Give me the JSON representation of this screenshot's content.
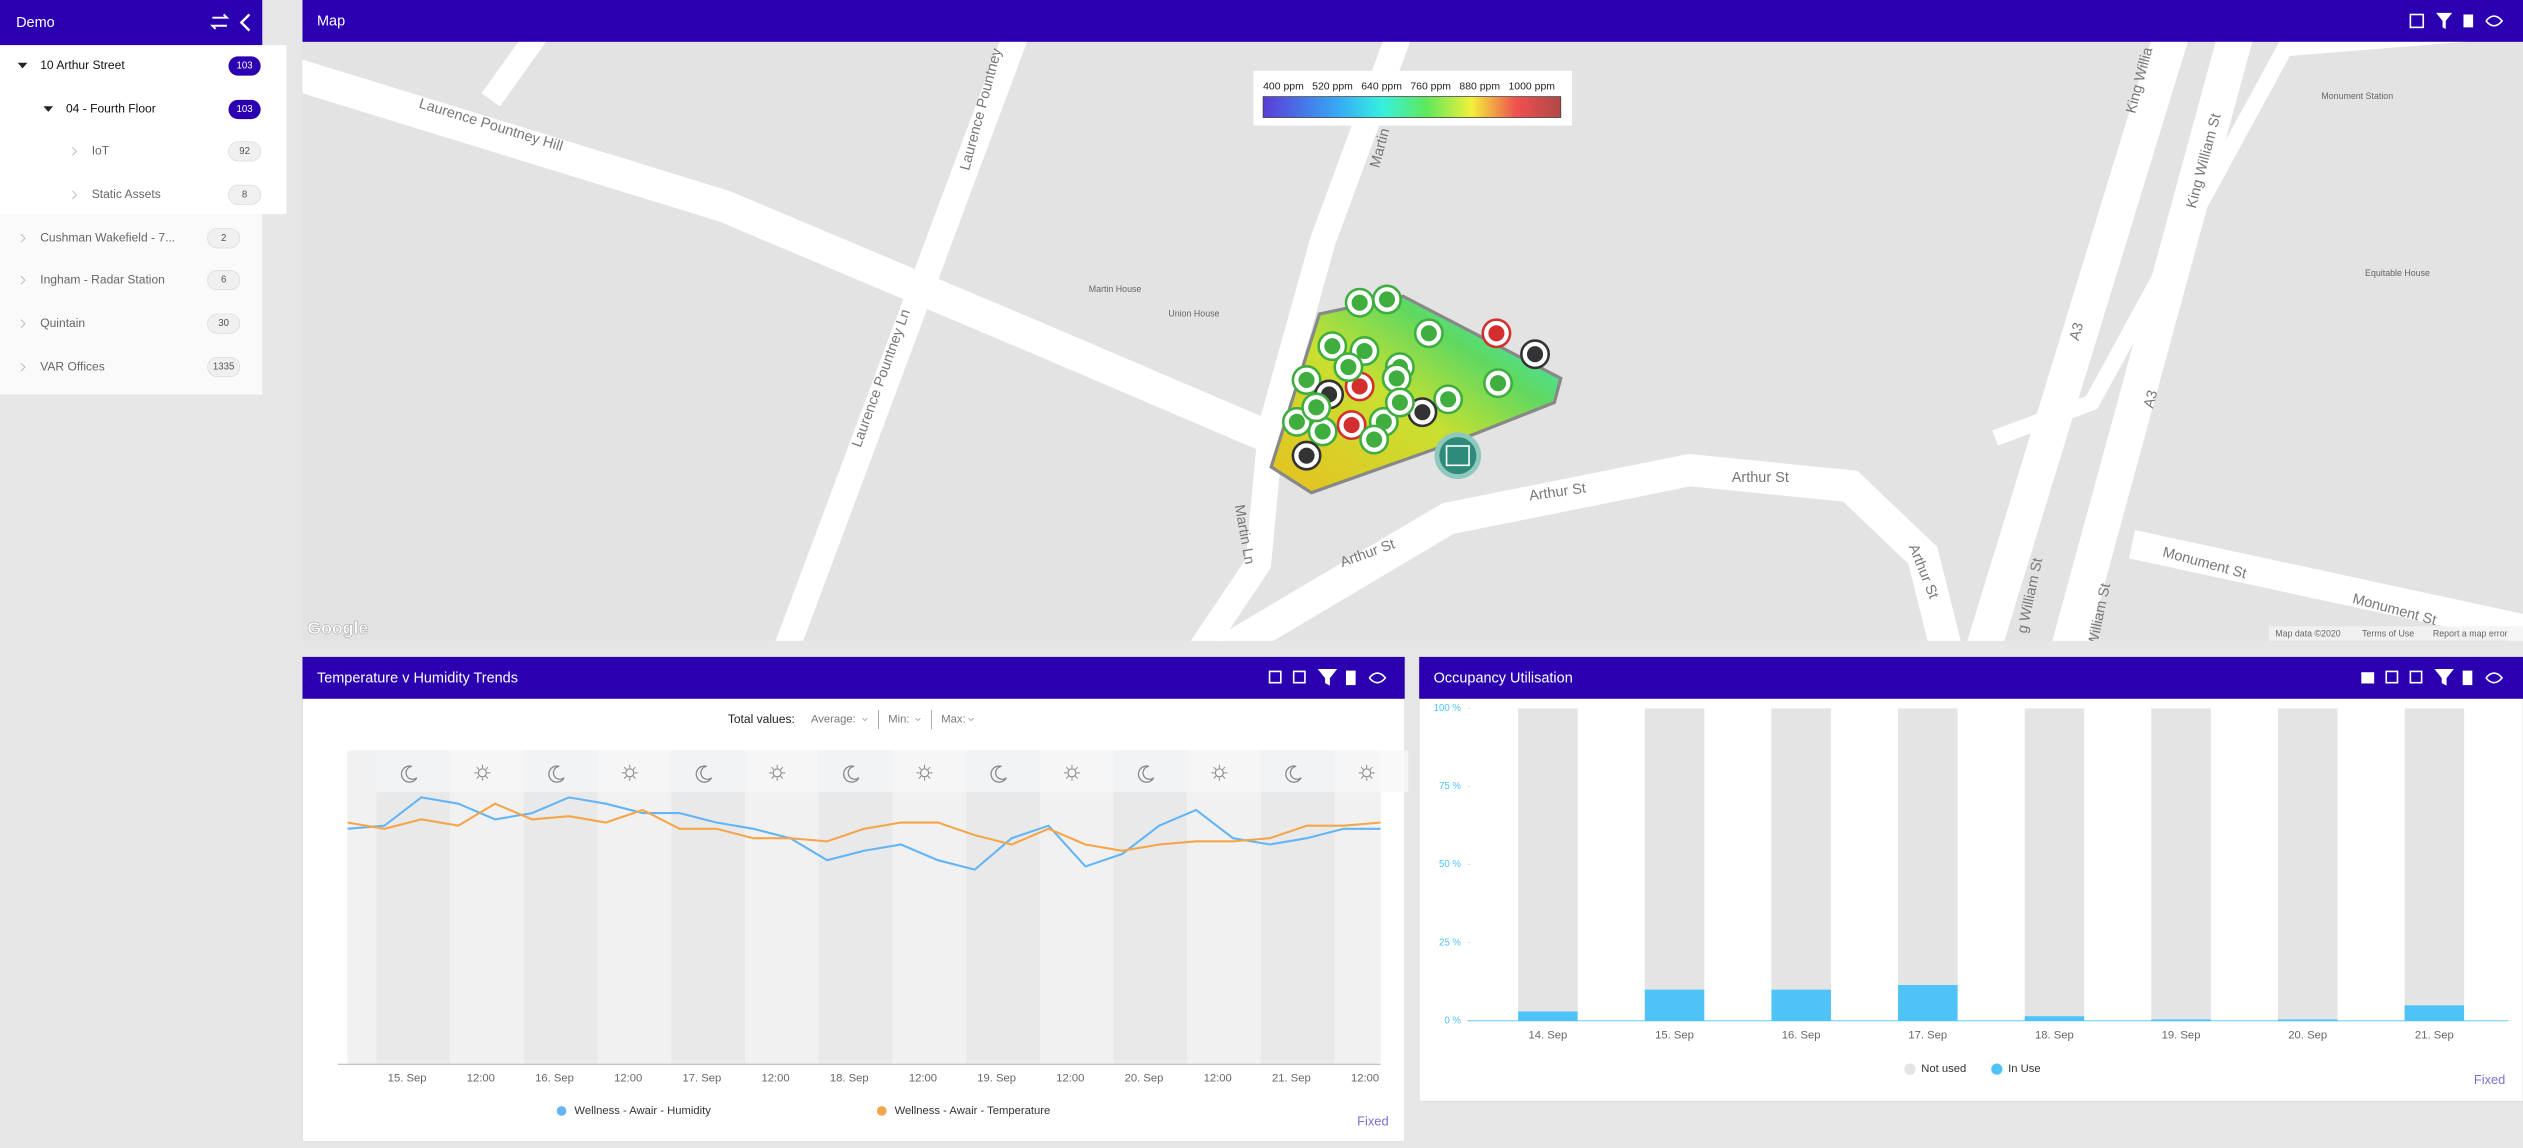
{
  "sidebar": {
    "title": "Demo",
    "items": [
      {
        "label": "10 Arthur Street",
        "count": 103
      },
      {
        "label": "04 - Fourth Floor",
        "count": 103
      },
      {
        "label": "IoT",
        "count": 92
      },
      {
        "label": "Static Assets",
        "count": 8
      },
      {
        "label": "Cushman Wakefield - 7...",
        "count": 2
      },
      {
        "label": "Ingham - Radar Station",
        "count": 6
      },
      {
        "label": "Quintain",
        "count": 30
      },
      {
        "label": "VAR Offices",
        "count": 1335
      }
    ]
  },
  "map": {
    "title": "Map",
    "legend": [
      "400 ppm",
      "520 ppm",
      "640 ppm",
      "760 ppm",
      "880 ppm",
      "1000 ppm"
    ],
    "labels": [
      "Laurence Pountney Hill",
      "Laurence Pountney Ln",
      "Laurence Pountney",
      "Martin",
      "Martin Ln",
      "Arthur St",
      "Arthur St",
      "Arthur St",
      "Arthur St",
      "A3",
      "A3",
      "King William St",
      "King Willia",
      "g William St",
      "William St",
      "Monument St",
      "Monument St",
      "Martin House",
      "Union House",
      "Monument Station",
      "Equitable House"
    ],
    "attribution": [
      "Google",
      "Map data ©2020",
      "Terms of Use",
      "Report a map error"
    ]
  },
  "chart_data": [
    {
      "type": "line",
      "title": "Temperature v Humidity Trends",
      "toolbar": [
        "Total values:",
        "Average:",
        "Min:",
        "Max:"
      ],
      "x_axis_labels": [
        "15. Sep",
        "12:00",
        "16. Sep",
        "12:00",
        "17. Sep",
        "12:00",
        "18. Sep",
        "12:00",
        "19. Sep",
        "12:00",
        "20. Sep",
        "12:00",
        "21. Sep",
        "12:00"
      ],
      "ylim": [
        0,
        100
      ],
      "series": [
        {
          "name": "Wellness - Awair - Humidity",
          "color": "#64b5f6",
          "values": [
            75,
            76,
            85,
            83,
            78,
            80,
            85,
            83,
            80,
            80,
            77,
            75,
            72,
            65,
            68,
            70,
            65,
            62,
            72,
            76,
            63,
            67,
            76,
            81,
            72,
            70,
            72,
            75,
            75
          ]
        },
        {
          "name": "Wellness - Awair - Temperature",
          "color": "#f5a54a",
          "values": [
            77,
            75,
            78,
            76,
            83,
            78,
            79,
            77,
            81,
            75,
            75,
            72,
            72,
            71,
            75,
            77,
            77,
            73,
            70,
            75,
            70,
            68,
            70,
            71,
            71,
            72,
            76,
            76,
            77
          ]
        }
      ],
      "note": "Fixed"
    },
    {
      "type": "bar",
      "stacked": true,
      "title": "Occupancy Utilisation",
      "categories": [
        "14. Sep",
        "15. Sep",
        "16. Sep",
        "17. Sep",
        "18. Sep",
        "19. Sep",
        "20. Sep",
        "21. Sep"
      ],
      "ylim": [
        0,
        100
      ],
      "yticks": [
        {
          "value": 100,
          "label": "100 %"
        },
        {
          "value": 75,
          "label": "75 %"
        },
        {
          "value": 50,
          "label": "50 %"
        },
        {
          "value": 25,
          "label": "25 %"
        },
        {
          "value": 0,
          "label": "0 %"
        }
      ],
      "series": [
        {
          "name": "Not used",
          "color": "#e4e4e4",
          "values": [
            97,
            90,
            90,
            88.5,
            98.5,
            99.5,
            99.5,
            95
          ]
        },
        {
          "name": "In Use",
          "color": "#4fc3f7",
          "values": [
            3,
            10,
            10,
            11.5,
            1.5,
            0.5,
            0.5,
            5
          ]
        }
      ],
      "note": "Fixed"
    }
  ]
}
